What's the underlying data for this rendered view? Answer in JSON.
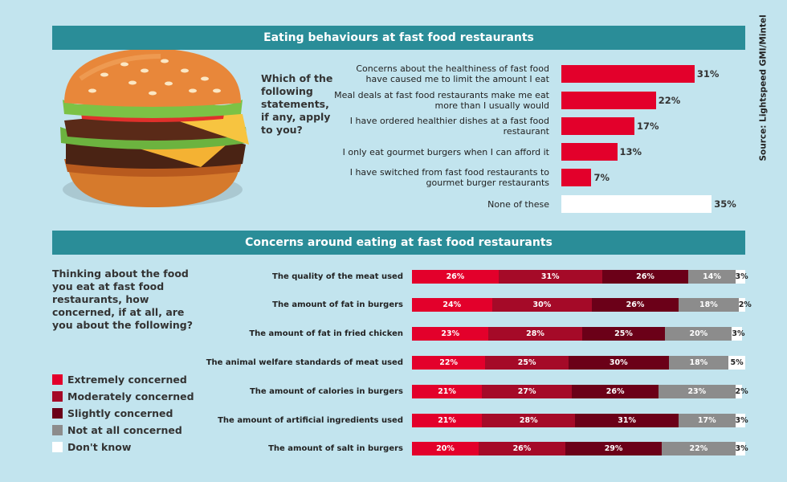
{
  "chart_data": [
    {
      "type": "bar",
      "title": "Eating behaviours at fast food restaurants",
      "subtitle": "Which of the following statements, if any, apply to you?",
      "source": "Source: Lightspeed GMI/Mintel",
      "categories": [
        "Concerns about the healthiness of fast food have caused me to limit the amount I eat",
        "Meal deals at fast food restaurants make me eat more than I usually would",
        "I have ordered healthier dishes at a fast food restaurant",
        "I only eat gourmet burgers when I can afford it",
        "I have switched from fast food restaurants to gourmet burger restaurants",
        "None of these"
      ],
      "values": [
        31,
        22,
        17,
        13,
        7,
        35
      ],
      "value_labels": [
        "31%",
        "22%",
        "17%",
        "13%",
        "7%",
        "35%"
      ],
      "colors": [
        "#e3002b",
        "#e3002b",
        "#e3002b",
        "#e3002b",
        "#e3002b",
        "#ffffff"
      ]
    },
    {
      "type": "stacked_bar",
      "title": "Concerns around eating at fast food restaurants",
      "subtitle": "Thinking about the food you eat at fast food restaurants, how concerned, if at all, are you about the following?",
      "categories": [
        "The quality of the meat used",
        "The amount of fat in burgers",
        "The amount of fat in fried chicken",
        "The animal welfare standards of meat used",
        "The amount of calories in burgers",
        "The amount of artificial ingredients used",
        "The amount of salt in burgers"
      ],
      "series": [
        {
          "name": "Extremely concerned",
          "color": "#e3002b",
          "values": [
            26,
            24,
            23,
            22,
            21,
            21,
            20
          ],
          "value_labels": [
            "26%",
            "24%",
            "23%",
            "22%",
            "21%",
            "21%",
            "20%"
          ]
        },
        {
          "name": "Moderately concerned",
          "color": "#a50a28",
          "values": [
            31,
            30,
            28,
            25,
            27,
            28,
            26
          ],
          "value_labels": [
            "31%",
            "30%",
            "28%",
            "25%",
            "27%",
            "28%",
            "26%"
          ]
        },
        {
          "name": "Slightly concerned",
          "color": "#6b0018",
          "values": [
            26,
            26,
            25,
            30,
            26,
            31,
            29
          ],
          "value_labels": [
            "26%",
            "26%",
            "25%",
            "30%",
            "26%",
            "31%",
            "29%"
          ]
        },
        {
          "name": "Not at all concerned",
          "color": "#8c8c8c",
          "values": [
            14,
            18,
            20,
            18,
            23,
            17,
            22
          ],
          "value_labels": [
            "14%",
            "18%",
            "20%",
            "18%",
            "23%",
            "17%",
            "22%"
          ]
        },
        {
          "name": "Don't know",
          "color": "#ffffff",
          "values": [
            3,
            2,
            3,
            5,
            2,
            3,
            3
          ],
          "value_labels": [
            "3%",
            "2%",
            "3%",
            "5%",
            "2%",
            "3%",
            "3%"
          ]
        }
      ]
    }
  ]
}
